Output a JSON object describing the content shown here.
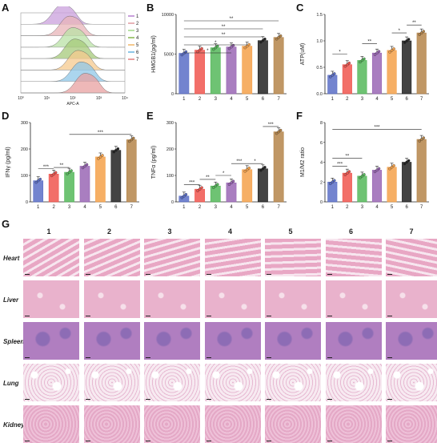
{
  "panel_letters": [
    "A",
    "B",
    "C",
    "D",
    "E",
    "F",
    "G"
  ],
  "panelA": {
    "xlabel": "APC-A",
    "xticks": [
      "10⁰",
      "10¹",
      "10²",
      "10³",
      "10⁴"
    ],
    "legend": [
      "1",
      "2",
      "3",
      "4",
      "5",
      "6",
      "7"
    ],
    "colors": [
      "#c9a0dc",
      "#e8b4b8",
      "#b9e2a6",
      "#a5c97a",
      "#f5c98e",
      "#8fc7e8",
      "#e8a0a0"
    ]
  },
  "chart_data": [
    {
      "type": "bar",
      "panel": "B",
      "ylabel": "HMGB1(pg/ml)",
      "categories": [
        "1",
        "2",
        "3",
        "4",
        "5",
        "6",
        "7"
      ],
      "values": [
        5100,
        5500,
        5800,
        5900,
        6000,
        6700,
        7100
      ],
      "yticks": [
        "0",
        "5000",
        "10000"
      ],
      "ylim": [
        0,
        10000
      ],
      "significance": [
        "*",
        "*",
        "**",
        "**",
        "**"
      ]
    },
    {
      "type": "bar",
      "panel": "C",
      "ylabel": "ATP(uM)",
      "categories": [
        "1",
        "2",
        "3",
        "4",
        "5",
        "6",
        "7"
      ],
      "values": [
        0.35,
        0.55,
        0.63,
        0.77,
        0.82,
        1.0,
        1.15
      ],
      "yticks": [
        "0.0",
        "0.5",
        "1.0",
        "1.5"
      ],
      "ylim": [
        0,
        1.5
      ],
      "significance": [
        "*",
        "**",
        "*",
        "**"
      ]
    },
    {
      "type": "bar",
      "panel": "D",
      "ylabel": "IFNγ (pg/ml)",
      "categories": [
        "1",
        "2",
        "3",
        "4",
        "5",
        "6",
        "7"
      ],
      "values": [
        80,
        105,
        112,
        135,
        170,
        195,
        235
      ],
      "yticks": [
        "0",
        "100",
        "200",
        "300"
      ],
      "ylim": [
        0,
        300
      ],
      "significance": [
        "***",
        "**",
        "***"
      ]
    },
    {
      "type": "bar",
      "panel": "E",
      "ylabel": "TNFα (pg/ml)",
      "categories": [
        "1",
        "2",
        "3",
        "4",
        "5",
        "6",
        "7"
      ],
      "values": [
        22,
        48,
        60,
        72,
        122,
        125,
        265
      ],
      "yticks": [
        "0",
        "100",
        "200",
        "300"
      ],
      "ylim": [
        0,
        300
      ],
      "significance": [
        "***",
        "**",
        "*",
        "***",
        "*",
        "***"
      ]
    },
    {
      "type": "bar",
      "panel": "F",
      "ylabel": "M1/M2 ratio",
      "categories": [
        "1",
        "2",
        "3",
        "4",
        "5",
        "6",
        "7"
      ],
      "values": [
        2.0,
        2.9,
        2.6,
        3.2,
        3.5,
        4.0,
        6.3
      ],
      "yticks": [
        "0",
        "2",
        "4",
        "6",
        "8"
      ],
      "ylim": [
        0,
        8
      ],
      "significance": [
        "***",
        "**",
        "***"
      ]
    }
  ],
  "bar_colors": [
    "#5b6fc7",
    "#f0564f",
    "#55b85a",
    "#9a67b5",
    "#f5a14a",
    "#222222",
    "#b5854a"
  ],
  "panelG": {
    "columns": [
      "1",
      "2",
      "3",
      "4",
      "5",
      "6",
      "7"
    ],
    "rows": [
      "Heart",
      "Liver",
      "Spleen",
      "Lung",
      "Kidney"
    ],
    "row_colors": [
      "#e8a7c4",
      "#e9b2cc",
      "#b07ec0",
      "#f0d0e0",
      "#e4a8c6"
    ]
  }
}
